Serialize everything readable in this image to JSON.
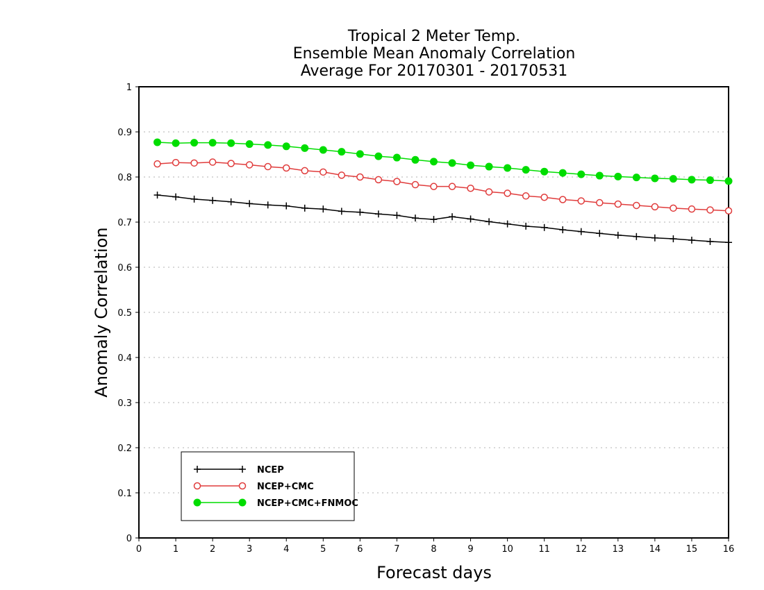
{
  "chart_data": {
    "type": "line",
    "title": [
      "Tropical 2 Meter Temp.",
      "Ensemble Mean Anomaly Correlation",
      "Average For 20170301 - 20170531"
    ],
    "xlabel": "Forecast days",
    "ylabel": "Anomaly Correlation",
    "xlim": [
      0,
      16
    ],
    "ylim": [
      0,
      1
    ],
    "x_ticks": [
      "0",
      "1",
      "2",
      "3",
      "4",
      "5",
      "6",
      "7",
      "8",
      "9",
      "10",
      "11",
      "12",
      "13",
      "14",
      "15",
      "16"
    ],
    "y_ticks": [
      "0",
      "0.1",
      "0.2",
      "0.3",
      "0.4",
      "0.5",
      "0.6",
      "0.7",
      "0.8",
      "0.9",
      "1"
    ],
    "grid": "horizontal-dotted",
    "legend_position": "bottom-left",
    "x": [
      0.5,
      1,
      1.5,
      2,
      2.5,
      3,
      3.5,
      4,
      4.5,
      5,
      5.5,
      6,
      6.5,
      7,
      7.5,
      8,
      8.5,
      9,
      9.5,
      10,
      10.5,
      11,
      11.5,
      12,
      12.5,
      13,
      13.5,
      14,
      14.5,
      15,
      15.5,
      16
    ],
    "series": [
      {
        "name": "NCEP",
        "color": "#000000",
        "marker": "plus",
        "values": [
          0.76,
          0.756,
          0.751,
          0.748,
          0.745,
          0.741,
          0.738,
          0.736,
          0.731,
          0.729,
          0.724,
          0.722,
          0.718,
          0.715,
          0.709,
          0.706,
          0.712,
          0.707,
          0.701,
          0.696,
          0.691,
          0.688,
          0.683,
          0.679,
          0.675,
          0.671,
          0.668,
          0.665,
          0.663,
          0.66,
          0.657,
          0.655
        ]
      },
      {
        "name": "NCEP+CMC",
        "color": "#e03b3b",
        "marker": "open-circle",
        "values": [
          0.829,
          0.832,
          0.831,
          0.833,
          0.83,
          0.827,
          0.823,
          0.82,
          0.814,
          0.811,
          0.804,
          0.8,
          0.794,
          0.79,
          0.783,
          0.779,
          0.779,
          0.775,
          0.767,
          0.764,
          0.758,
          0.755,
          0.75,
          0.747,
          0.743,
          0.74,
          0.737,
          0.734,
          0.731,
          0.729,
          0.727,
          0.725
        ]
      },
      {
        "name": "NCEP+CMC+FNMOC",
        "color": "#00dd00",
        "marker": "filled-circle",
        "values": [
          0.877,
          0.875,
          0.876,
          0.876,
          0.875,
          0.873,
          0.871,
          0.868,
          0.864,
          0.86,
          0.856,
          0.851,
          0.846,
          0.843,
          0.838,
          0.834,
          0.831,
          0.826,
          0.823,
          0.82,
          0.816,
          0.812,
          0.809,
          0.806,
          0.803,
          0.801,
          0.799,
          0.797,
          0.796,
          0.794,
          0.793,
          0.791
        ]
      }
    ]
  }
}
